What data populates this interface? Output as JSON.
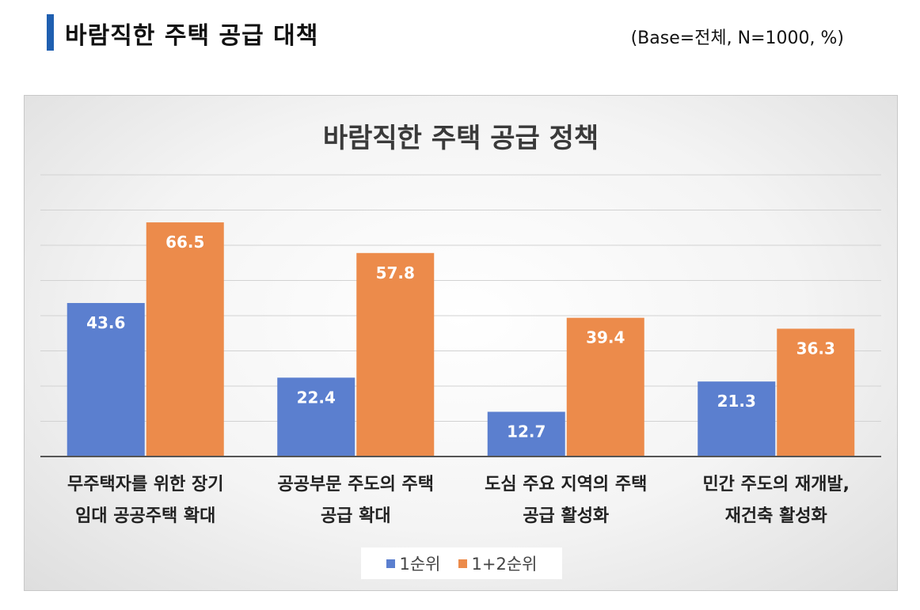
{
  "header": {
    "title": "바람직한 주택 공급 대책",
    "base_note": "(Base=전체,  N=1000,  %)"
  },
  "colors": {
    "accent": "#1f5fb0",
    "series1": "#5b7fcf",
    "series2": "#ec8b4b"
  },
  "chart_data": {
    "type": "bar",
    "title": "바람직한 주택 공급 정책",
    "categories": [
      [
        "무주택자를 위한 장기",
        "임대 공공주택 확대"
      ],
      [
        "공공부문 주도의 주택",
        "공급 확대"
      ],
      [
        "도심 주요 지역의 주택",
        "공급 활성화"
      ],
      [
        "민간 주도의 재개발,",
        "재건축 활성화"
      ]
    ],
    "series": [
      {
        "name": "1순위",
        "values": [
          43.6,
          22.4,
          12.7,
          21.3
        ]
      },
      {
        "name": "1+2순위",
        "values": [
          66.5,
          57.8,
          39.4,
          36.3
        ]
      }
    ],
    "ylim": [
      0,
      80
    ],
    "grid": true,
    "legend": "bottom",
    "data_labels": true
  }
}
